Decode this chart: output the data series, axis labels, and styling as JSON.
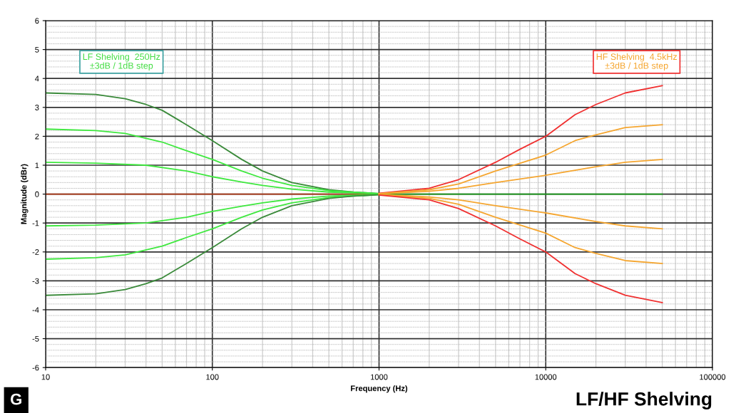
{
  "chart_data": {
    "type": "line",
    "title": "LF/HF Shelving",
    "xlabel": "Frequency (Hz)",
    "ylabel": "Magnitude (dBr)",
    "annotations": [
      "LF Shelving  250Hz\n±3dB / 1dB step",
      "HF Shelving  4.5kHz\n±3dB / 1dB step",
      "G"
    ],
    "log": "x",
    "xlim": [
      10,
      100000
    ],
    "ylim": [
      -6,
      6
    ],
    "xticks": [
      10,
      100,
      1000,
      10000,
      100000
    ],
    "yticks": [
      -6,
      -5,
      -4,
      -3,
      -2,
      -1,
      0,
      1,
      2,
      3,
      4,
      5,
      6
    ],
    "grid": true,
    "legend": false,
    "marker": "none",
    "line_style": "solid",
    "series": [
      {
        "color": "#b5401f",
        "x": [
          10,
          1000
        ],
        "values": [
          0,
          0
        ]
      },
      {
        "color": "#1fa01f",
        "x": [
          1000,
          50000
        ],
        "values": [
          0,
          0
        ]
      },
      {
        "color": "#3a8a3a",
        "x": [
          10,
          20,
          30,
          40,
          50,
          70,
          100,
          150,
          200,
          300,
          500,
          700,
          1000
        ],
        "values": [
          3.5,
          3.45,
          3.3,
          3.1,
          2.9,
          2.4,
          1.85,
          1.2,
          0.8,
          0.4,
          0.15,
          0.07,
          0.02
        ]
      },
      {
        "color": "#3fe83f",
        "x": [
          10,
          20,
          30,
          50,
          70,
          100,
          150,
          200,
          300,
          500,
          1000
        ],
        "values": [
          2.25,
          2.2,
          2.1,
          1.8,
          1.5,
          1.2,
          0.8,
          0.55,
          0.3,
          0.12,
          0.02
        ]
      },
      {
        "color": "#3fe83f",
        "x": [
          10,
          20,
          40,
          70,
          100,
          150,
          200,
          300,
          500,
          1000
        ],
        "values": [
          1.1,
          1.07,
          1.0,
          0.8,
          0.6,
          0.42,
          0.3,
          0.17,
          0.07,
          0.01
        ]
      },
      {
        "color": "#3fe83f",
        "x": [
          10,
          20,
          40,
          70,
          100,
          150,
          200,
          300,
          500,
          1000
        ],
        "values": [
          -1.1,
          -1.07,
          -1.0,
          -0.8,
          -0.6,
          -0.42,
          -0.3,
          -0.17,
          -0.07,
          -0.01
        ]
      },
      {
        "color": "#3fe83f",
        "x": [
          10,
          20,
          30,
          50,
          70,
          100,
          150,
          200,
          300,
          500,
          1000
        ],
        "values": [
          -2.25,
          -2.2,
          -2.1,
          -1.8,
          -1.5,
          -1.2,
          -0.8,
          -0.55,
          -0.3,
          -0.12,
          -0.02
        ]
      },
      {
        "color": "#3a8a3a",
        "x": [
          10,
          20,
          30,
          40,
          50,
          70,
          100,
          150,
          200,
          300,
          500,
          700,
          1000
        ],
        "values": [
          -3.5,
          -3.45,
          -3.3,
          -3.1,
          -2.9,
          -2.4,
          -1.85,
          -1.2,
          -0.8,
          -0.4,
          -0.15,
          -0.07,
          -0.02
        ]
      },
      {
        "color": "#f03030",
        "x": [
          1000,
          2000,
          3000,
          5000,
          7000,
          10000,
          15000,
          20000,
          30000,
          50000
        ],
        "values": [
          0.03,
          0.2,
          0.5,
          1.1,
          1.55,
          2.0,
          2.75,
          3.1,
          3.5,
          3.75
        ]
      },
      {
        "color": "#f5a630",
        "x": [
          1000,
          2000,
          3000,
          5000,
          10000,
          15000,
          20000,
          30000,
          50000
        ],
        "values": [
          0.02,
          0.15,
          0.35,
          0.8,
          1.35,
          1.85,
          2.05,
          2.3,
          2.4
        ]
      },
      {
        "color": "#f5a630",
        "x": [
          1000,
          2000,
          3000,
          5000,
          10000,
          20000,
          30000,
          50000
        ],
        "values": [
          0.01,
          0.1,
          0.2,
          0.4,
          0.65,
          0.95,
          1.1,
          1.2
        ]
      },
      {
        "color": "#f5a630",
        "x": [
          1000,
          2000,
          3000,
          5000,
          10000,
          20000,
          30000,
          50000
        ],
        "values": [
          -0.01,
          -0.1,
          -0.2,
          -0.4,
          -0.65,
          -0.95,
          -1.1,
          -1.2
        ]
      },
      {
        "color": "#f5a630",
        "x": [
          1000,
          2000,
          3000,
          5000,
          10000,
          15000,
          20000,
          30000,
          50000
        ],
        "values": [
          -0.02,
          -0.15,
          -0.35,
          -0.8,
          -1.35,
          -1.85,
          -2.05,
          -2.3,
          -2.4
        ]
      },
      {
        "color": "#f03030",
        "x": [
          1000,
          2000,
          3000,
          5000,
          7000,
          10000,
          15000,
          20000,
          30000,
          50000
        ],
        "values": [
          -0.03,
          -0.2,
          -0.5,
          -1.1,
          -1.55,
          -2.0,
          -2.75,
          -3.1,
          -3.5,
          -3.75
        ]
      }
    ]
  }
}
